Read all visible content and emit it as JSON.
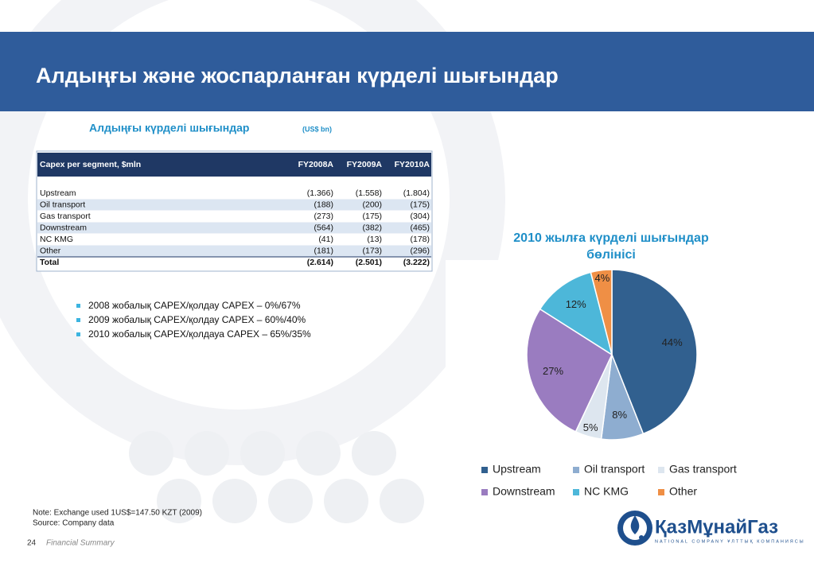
{
  "header": {
    "title": "Алдыңғы және жоспарланған күрделі шығындар"
  },
  "subtitle": {
    "text": "Алдыңғы күрделі шығындар",
    "unit": "(US$ bn)"
  },
  "table": {
    "columns": [
      "Capex per segment, $mln",
      "FY2008A",
      "FY2009A",
      "FY2010A"
    ],
    "rows": [
      [
        "Upstream",
        "(1.366)",
        "(1.558)",
        "(1.804)"
      ],
      [
        "Oil transport",
        "(188)",
        "(200)",
        "(175)"
      ],
      [
        "Gas transport",
        "(273)",
        "(175)",
        "(304)"
      ],
      [
        "Downstream",
        "(564)",
        "(382)",
        "(465)"
      ],
      [
        "NC KMG",
        "(41)",
        "(13)",
        "(178)"
      ],
      [
        "Other",
        "(181)",
        "(173)",
        "(296)"
      ],
      [
        "Total",
        "(2.614)",
        "(2.501)",
        "(3.222)"
      ]
    ]
  },
  "bullets": [
    "2008 жобалық CAPEX/қолдау CAPEX – 0%/67%",
    "2009 жобалық CAPEX/қолдау CAPEX – 60%/40%",
    "2010 жобалық CAPEX/қолдауа CAPEX – 65%/35%"
  ],
  "chart_data": {
    "type": "pie",
    "title": "2010 жылға күрделі шығындар бөлінісі",
    "categories": [
      "Upstream",
      "Oil transport",
      "Gas transport",
      "Downstream",
      "NC KMG",
      "Other"
    ],
    "values": [
      44,
      8,
      5,
      27,
      12,
      4
    ],
    "value_labels": [
      "44%",
      "8%",
      "5%",
      "27%",
      "12%",
      "4%"
    ],
    "colors": [
      "#31608f",
      "#8eadd0",
      "#dde6ef",
      "#9a7cc0",
      "#4db7d9",
      "#ef8f45"
    ]
  },
  "notes": [
    "Note: Exchange used 1US$=147.50 KZT (2009)",
    "Source: Company data"
  ],
  "footer": {
    "page": "24",
    "section": "Financial Summary"
  },
  "logo": {
    "name": "ҚазМұнайГаз",
    "tagline": "NATIONAL COMPANY ҰЛТТЫҚ КОМПАНИЯСЫ"
  }
}
